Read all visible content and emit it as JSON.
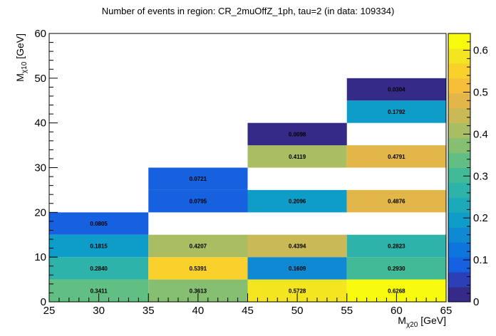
{
  "chart_data": {
    "type": "heatmap",
    "title": "Number of events in region: CR_2muOffZ_1ph, tau=2 (in data: 109334)",
    "xlabel": {
      "main": "M",
      "sub": "χ20",
      "unit": " [GeV]"
    },
    "ylabel": {
      "main": "M",
      "sub": "χ10",
      "unit": " [GeV]"
    },
    "xlim": [
      25,
      65
    ],
    "ylim": [
      0,
      60
    ],
    "zlim": [
      0,
      0.64
    ],
    "x_ticks": [
      25,
      30,
      35,
      40,
      45,
      50,
      55,
      60,
      65
    ],
    "y_ticks": [
      0,
      10,
      20,
      30,
      40,
      50,
      60
    ],
    "z_ticks": [
      "0",
      "0.1",
      "0.2",
      "0.3",
      "0.4",
      "0.5",
      "0.6"
    ],
    "x_bins": [
      25,
      35,
      45,
      55,
      65
    ],
    "y_bins": [
      0,
      5,
      10,
      15,
      20,
      25,
      30,
      35,
      40,
      45,
      50,
      55,
      60
    ],
    "cells": [
      {
        "x": 0,
        "y": 0,
        "value": 0.3411,
        "label": "0.3411"
      },
      {
        "x": 1,
        "y": 0,
        "value": 0.3613,
        "label": "0.3613"
      },
      {
        "x": 2,
        "y": 0,
        "value": 0.5728,
        "label": "0.5728"
      },
      {
        "x": 3,
        "y": 0,
        "value": 0.6268,
        "label": "0.6268"
      },
      {
        "x": 0,
        "y": 1,
        "value": 0.284,
        "label": "0.2840"
      },
      {
        "x": 1,
        "y": 1,
        "value": 0.5391,
        "label": "0.5391"
      },
      {
        "x": 2,
        "y": 1,
        "value": 0.1609,
        "label": "0.1609"
      },
      {
        "x": 3,
        "y": 1,
        "value": 0.293,
        "label": "0.2930"
      },
      {
        "x": 0,
        "y": 2,
        "value": 0.1815,
        "label": "0.1815"
      },
      {
        "x": 1,
        "y": 2,
        "value": 0.4207,
        "label": "0.4207"
      },
      {
        "x": 2,
        "y": 2,
        "value": 0.4394,
        "label": "0.4394"
      },
      {
        "x": 3,
        "y": 2,
        "value": 0.2823,
        "label": "0.2823"
      },
      {
        "x": 0,
        "y": 3,
        "value": 0.0805,
        "label": "0.0805"
      },
      {
        "x": 1,
        "y": 4,
        "value": 0.0795,
        "label": "0.0795"
      },
      {
        "x": 2,
        "y": 4,
        "value": 0.2096,
        "label": "0.2096"
      },
      {
        "x": 3,
        "y": 4,
        "value": 0.4876,
        "label": "0.4876"
      },
      {
        "x": 1,
        "y": 5,
        "value": 0.0721,
        "label": "0.0721"
      },
      {
        "x": 2,
        "y": 6,
        "value": 0.4119,
        "label": "0.4119"
      },
      {
        "x": 3,
        "y": 6,
        "value": 0.4791,
        "label": "0.4791"
      },
      {
        "x": 2,
        "y": 7,
        "value": 0.0098,
        "label": "0.0098"
      },
      {
        "x": 3,
        "y": 8,
        "value": 0.1792,
        "label": "0.1792"
      },
      {
        "x": 3,
        "y": 9,
        "value": 0.0304,
        "label": "0.0304"
      }
    ],
    "palette": [
      "#352a87",
      "#2d3fb6",
      "#1561e0",
      "#0d75dc",
      "#0f8ad2",
      "#0e9cc9",
      "#1ca9b9",
      "#2db3aa",
      "#43ba97",
      "#62bf84",
      "#86bf71",
      "#a9bd63",
      "#c9ba56",
      "#e3b64a",
      "#f6be39",
      "#fad12c",
      "#f3e51f",
      "#f9fb0e"
    ],
    "grid": false,
    "legend": "colorbar-right"
  }
}
